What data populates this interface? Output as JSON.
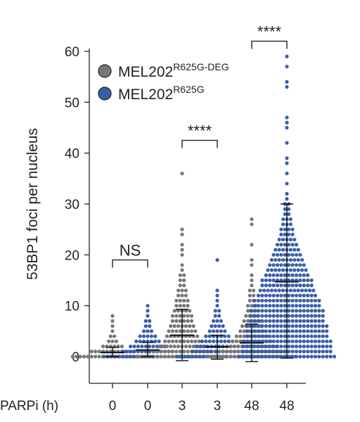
{
  "chart_data": {
    "type": "scatter",
    "subtype": "dot-plot with mean ± SD",
    "ylabel": "53BP1 foci per nucleus",
    "xlabel_prefix": "PARPi (h)",
    "ylim": [
      0,
      60
    ],
    "yticks": [
      0,
      10,
      20,
      30,
      40,
      50,
      60
    ],
    "categories": [
      "0",
      "0",
      "3",
      "3",
      "48",
      "48"
    ],
    "legend": {
      "placement": "top-left",
      "entries": [
        {
          "name": "MEL202",
          "sup": "R625G-DEG",
          "color": "#777777"
        },
        {
          "name": "MEL202",
          "sup": "R625G",
          "color": "#3a5ea8"
        }
      ]
    },
    "series": [
      {
        "category_index": 0,
        "group": "MEL202 R625G-DEG",
        "color": "#777777",
        "mean": 0.8,
        "sd_low": 0,
        "sd_high": 1.8,
        "points": {
          "0": 22,
          "1": 12,
          "2": 6,
          "3": 3,
          "4": 2,
          "5": 1,
          "6": 1,
          "7": 1,
          "8": 1
        }
      },
      {
        "category_index": 1,
        "group": "MEL202 R625G",
        "color": "#3a5ea8",
        "mean": 1.3,
        "sd_low": 0,
        "sd_high": 2.8,
        "points": {
          "0": 24,
          "1": 14,
          "2": 10,
          "3": 7,
          "4": 5,
          "5": 3,
          "6": 2,
          "7": 2,
          "8": 1,
          "9": 1,
          "10": 1
        }
      },
      {
        "category_index": 2,
        "group": "MEL202 R625G-DEG",
        "color": "#777777",
        "mean": 4.2,
        "sd_low": -0.8,
        "sd_high": 9.3,
        "points": {
          "0": 24,
          "1": 16,
          "2": 13,
          "3": 10,
          "4": 9,
          "5": 8,
          "6": 7,
          "7": 6,
          "8": 6,
          "9": 5,
          "10": 4,
          "11": 4,
          "12": 3,
          "13": 3,
          "14": 2,
          "15": 2,
          "16": 2,
          "17": 1,
          "18": 1,
          "20": 1,
          "21": 1,
          "22": 1,
          "24": 1,
          "25": 1,
          "36": 1
        }
      },
      {
        "category_index": 3,
        "group": "MEL202 R625G",
        "color": "#3a5ea8",
        "mean": 1.9,
        "sd_low": -0.5,
        "sd_high": 4.2,
        "points": {
          "0": 22,
          "1": 14,
          "2": 12,
          "3": 9,
          "4": 7,
          "5": 5,
          "6": 4,
          "7": 3,
          "8": 2,
          "9": 2,
          "10": 1,
          "11": 1,
          "12": 1,
          "13": 1,
          "19": 1
        }
      },
      {
        "category_index": 4,
        "group": "MEL202 R625G-DEG",
        "color": "#777777",
        "mean": 2.7,
        "sd_low": -1.0,
        "sd_high": 6.4,
        "points": {
          "0": 24,
          "1": 18,
          "2": 14,
          "3": 11,
          "4": 9,
          "5": 7,
          "6": 6,
          "7": 5,
          "8": 4,
          "9": 3,
          "10": 3,
          "11": 2,
          "12": 2,
          "13": 2,
          "14": 1,
          "15": 1,
          "16": 1,
          "18": 1,
          "19": 1,
          "22": 1,
          "26": 1,
          "27": 1
        }
      },
      {
        "category_index": 5,
        "group": "MEL202 R625G",
        "color": "#3a5ea8",
        "mean": 14.7,
        "sd_low": -0.3,
        "sd_high": 30,
        "points": {
          "0": 26,
          "1": 24,
          "2": 24,
          "3": 24,
          "4": 22,
          "5": 22,
          "6": 22,
          "7": 20,
          "8": 20,
          "9": 20,
          "10": 18,
          "11": 18,
          "12": 16,
          "13": 15,
          "14": 14,
          "15": 14,
          "16": 12,
          "17": 11,
          "18": 10,
          "19": 9,
          "20": 8,
          "21": 7,
          "22": 6,
          "23": 5,
          "24": 4,
          "25": 4,
          "26": 3,
          "27": 3,
          "28": 2,
          "29": 2,
          "30": 2,
          "31": 1,
          "32": 1,
          "34": 1,
          "36": 1,
          "38": 1,
          "39": 1,
          "42": 1,
          "45": 1,
          "46": 1,
          "47": 1,
          "53": 1,
          "54": 1,
          "57": 1,
          "59": 1
        }
      }
    ],
    "significance": [
      {
        "from": 0,
        "to": 1,
        "label": "NS",
        "y": 19
      },
      {
        "from": 2,
        "to": 3,
        "label": "****",
        "y": 42.5
      },
      {
        "from": 4,
        "to": 5,
        "label": "****",
        "y": 62
      }
    ]
  }
}
